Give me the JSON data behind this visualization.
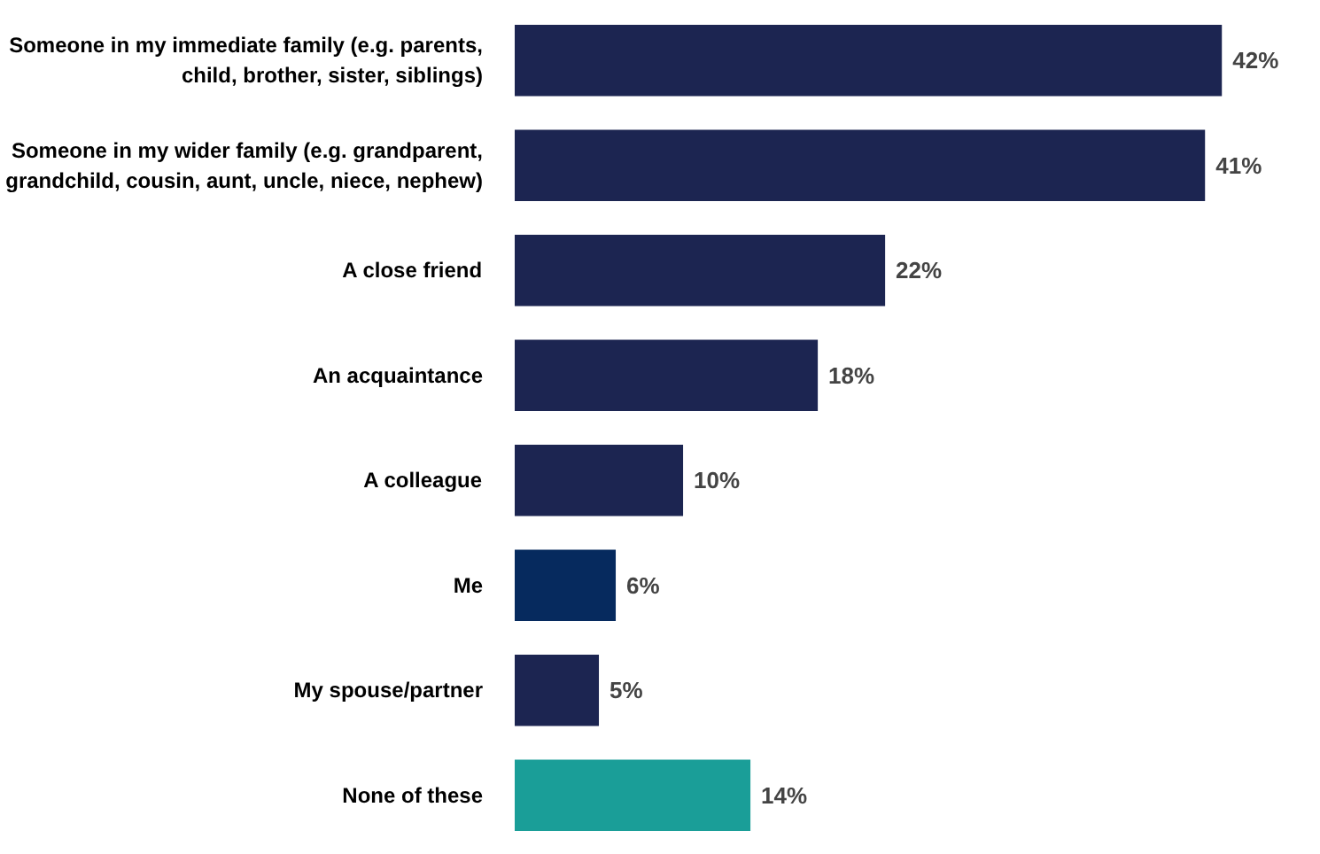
{
  "chart_data": {
    "type": "bar",
    "orientation": "horizontal",
    "categories": [
      "Someone in my immediate family (e.g. parents, child, brother, sister, siblings)",
      "Someone in my wider family (e.g. grandparent, grandchild, cousin, aunt, uncle, niece, nephew)",
      "A close friend",
      "An acquaintance",
      "A colleague",
      "Me",
      "My spouse/partner",
      "None of these"
    ],
    "values": [
      42,
      41,
      22,
      18,
      10,
      6,
      5,
      14
    ],
    "colors": [
      "#1c2551",
      "#1c2551",
      "#1c2551",
      "#1c2551",
      "#1c2551",
      "#062a5e",
      "#1c2551",
      "#1a9e98"
    ],
    "value_labels": [
      "42%",
      "41%",
      "22%",
      "18%",
      "10%",
      "6%",
      "5%",
      "14%"
    ],
    "grid": false
  }
}
